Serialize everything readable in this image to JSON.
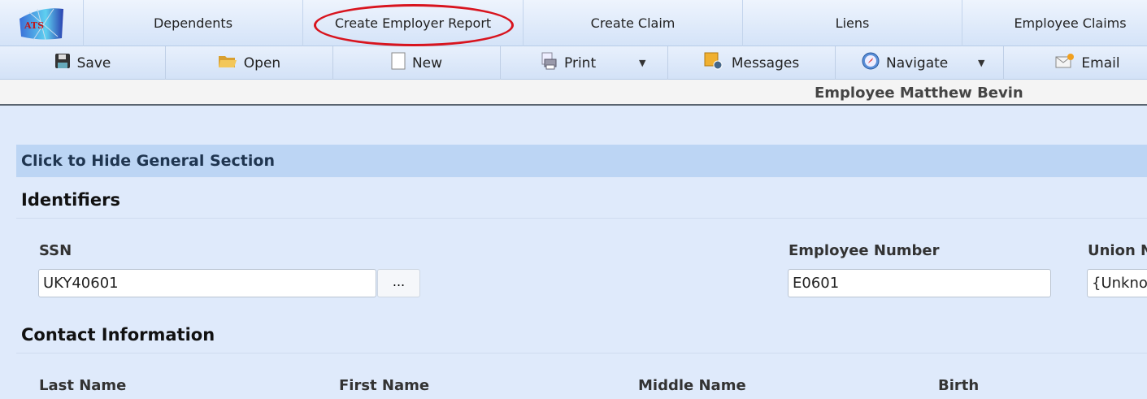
{
  "logo": {
    "text": "ATS"
  },
  "tabs": [
    "Dependents",
    "Create Employer Report",
    "Create Claim",
    "Liens",
    "Employee Claims"
  ],
  "toolbar": {
    "save": "Save",
    "open": "Open",
    "new": "New",
    "print": "Print",
    "messages": "Messages",
    "navigate": "Navigate",
    "email": "Email"
  },
  "title": "Employee Matthew Bevin",
  "section_toggle": "Click to Hide General Section",
  "identifiers": {
    "heading": "Identifiers",
    "ssn_label": "SSN",
    "ssn_value": "UKY40601",
    "lookup": "...",
    "empnum_label": "Employee Number",
    "empnum_value": "E0601",
    "union_label": "Union N",
    "union_value": "{Unkno"
  },
  "contact": {
    "heading": "Contact Information",
    "last": "Last Name",
    "first": "First Name",
    "middle": "Middle Name",
    "birth": "Birth"
  },
  "colors": {
    "highlight": "#d8141e",
    "section": "#bcd5f4"
  }
}
